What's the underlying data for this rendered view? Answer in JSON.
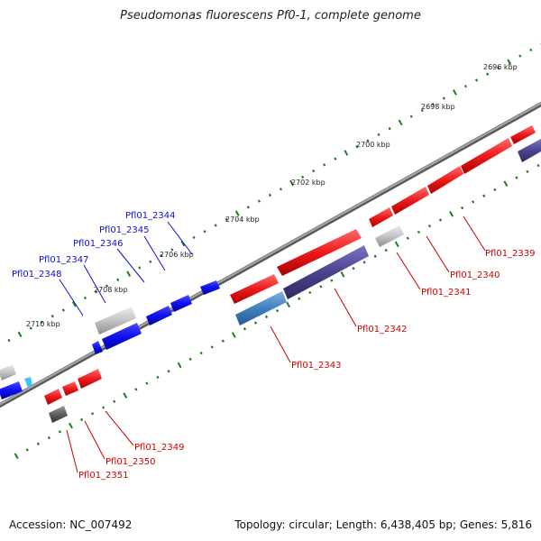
{
  "title": "Pseudomonas fluorescens Pf0-1, complete genome",
  "footer": {
    "accession": "Accession: NC_007492",
    "summary": "Topology: circular; Length: 6,438,405 bp; Genes: 5,816"
  },
  "colors": {
    "backbone": "#8a8a8a",
    "tick": "#1f7a1f",
    "plus_label": "#1010cc",
    "minus_label": "#cc0000"
  },
  "kbp_marks": [
    {
      "label": "2696 kbp",
      "kbp": 2696
    },
    {
      "label": "2698 kbp",
      "kbp": 2698
    },
    {
      "label": "2700 kbp",
      "kbp": 2700
    },
    {
      "label": "2702 kbp",
      "kbp": 2702
    },
    {
      "label": "2704 kbp",
      "kbp": 2704
    },
    {
      "label": "2706 kbp",
      "kbp": 2706
    },
    {
      "label": "2708 kbp",
      "kbp": 2708
    },
    {
      "label": "2710 kbp",
      "kbp": 2710
    }
  ],
  "gene_labels": [
    {
      "text": "Pfl01_2344",
      "strand": "plus"
    },
    {
      "text": "Pfl01_2345",
      "strand": "plus"
    },
    {
      "text": "Pfl01_2346",
      "strand": "plus"
    },
    {
      "text": "Pfl01_2347",
      "strand": "plus"
    },
    {
      "text": "Pfl01_2348",
      "strand": "plus"
    },
    {
      "text": "Pfl01_2339",
      "strand": "minus"
    },
    {
      "text": "Pfl01_2340",
      "strand": "minus"
    },
    {
      "text": "Pfl01_2341",
      "strand": "minus"
    },
    {
      "text": "Pfl01_2342",
      "strand": "minus"
    },
    {
      "text": "Pfl01_2343",
      "strand": "minus"
    },
    {
      "text": "Pfl01_2349",
      "strand": "minus"
    },
    {
      "text": "Pfl01_2350",
      "strand": "minus"
    },
    {
      "text": "Pfl01_2351",
      "strand": "minus"
    }
  ]
}
